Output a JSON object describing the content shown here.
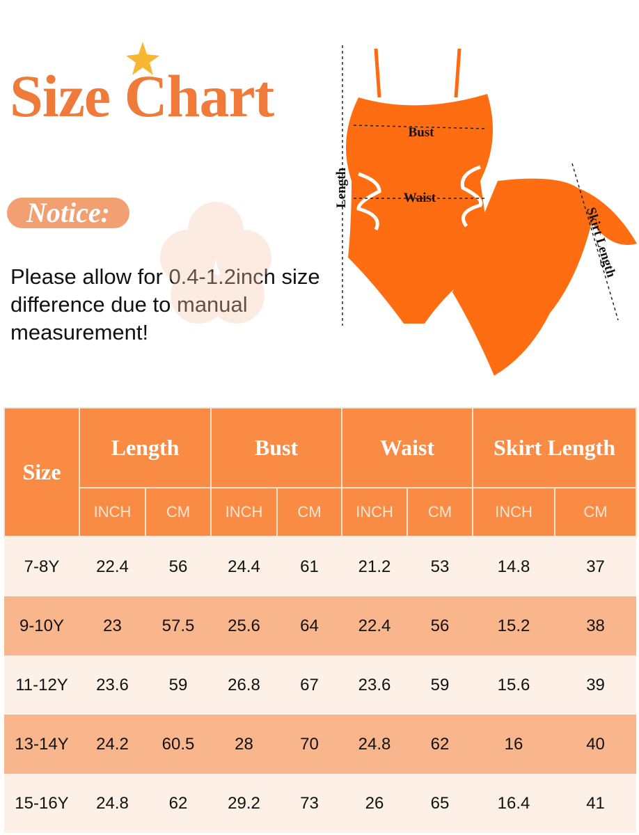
{
  "header": {
    "title": "Size Chart",
    "notice_label": "Notice:",
    "notice_text": "Please allow for 0.4-1.2inch size difference due to manual measurement!"
  },
  "diagram": {
    "bust": "Bust",
    "waist": "Waist",
    "length": "Length",
    "skirt_length": "Skirt Length"
  },
  "table": {
    "size_header": "Size",
    "groups": [
      "Length",
      "Bust",
      "Waist",
      "Skirt Length"
    ],
    "units": [
      "INCH",
      "CM",
      "INCH",
      "CM",
      "INCH",
      "CM",
      "INCH",
      "CM"
    ],
    "rows": [
      [
        "7-8Y",
        22.4,
        56,
        24.4,
        61,
        21.2,
        53,
        14.8,
        37
      ],
      [
        "9-10Y",
        23,
        57.5,
        25.6,
        64,
        22.4,
        56,
        15.2,
        38
      ],
      [
        "11-12Y",
        23.6,
        59,
        26.8,
        67,
        23.6,
        59,
        15.6,
        39
      ],
      [
        "13-14Y",
        24.2,
        60.5,
        28,
        70,
        24.8,
        62,
        16,
        40
      ],
      [
        "15-16Y",
        24.8,
        62,
        29.2,
        73,
        26,
        65,
        16.4,
        41
      ]
    ]
  }
}
